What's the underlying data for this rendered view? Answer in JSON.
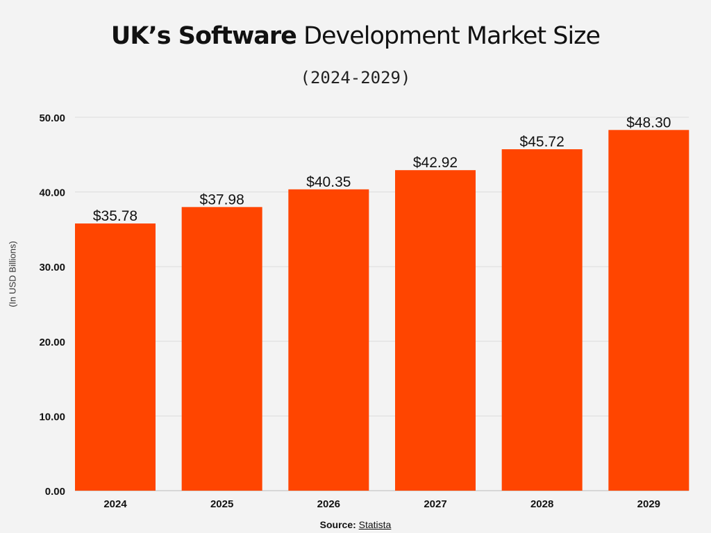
{
  "title": {
    "bold": "UK’s Software",
    "rest": " Development Market Size"
  },
  "subtitle": "(2024-2029)",
  "source": {
    "label": "Source:",
    "link": "Statista"
  },
  "chart_data": {
    "type": "bar",
    "title": "UK’s Software Development Market Size",
    "subtitle": "(2024-2029)",
    "xlabel": "",
    "ylabel": "(In USD Billions)",
    "categories": [
      "2024",
      "2025",
      "2026",
      "2027",
      "2028",
      "2029"
    ],
    "values": [
      35.78,
      37.98,
      40.35,
      42.92,
      45.72,
      48.3
    ],
    "data_labels": [
      "$35.78",
      "$37.98",
      "$40.35",
      "$42.92",
      "$45.72",
      "$48.30"
    ],
    "yticks": [
      "0.00",
      "10.00",
      "20.00",
      "30.00",
      "40.00",
      "50.00"
    ],
    "ylim": [
      0,
      50
    ],
    "grid": true,
    "bar_color": "#ff4500"
  }
}
